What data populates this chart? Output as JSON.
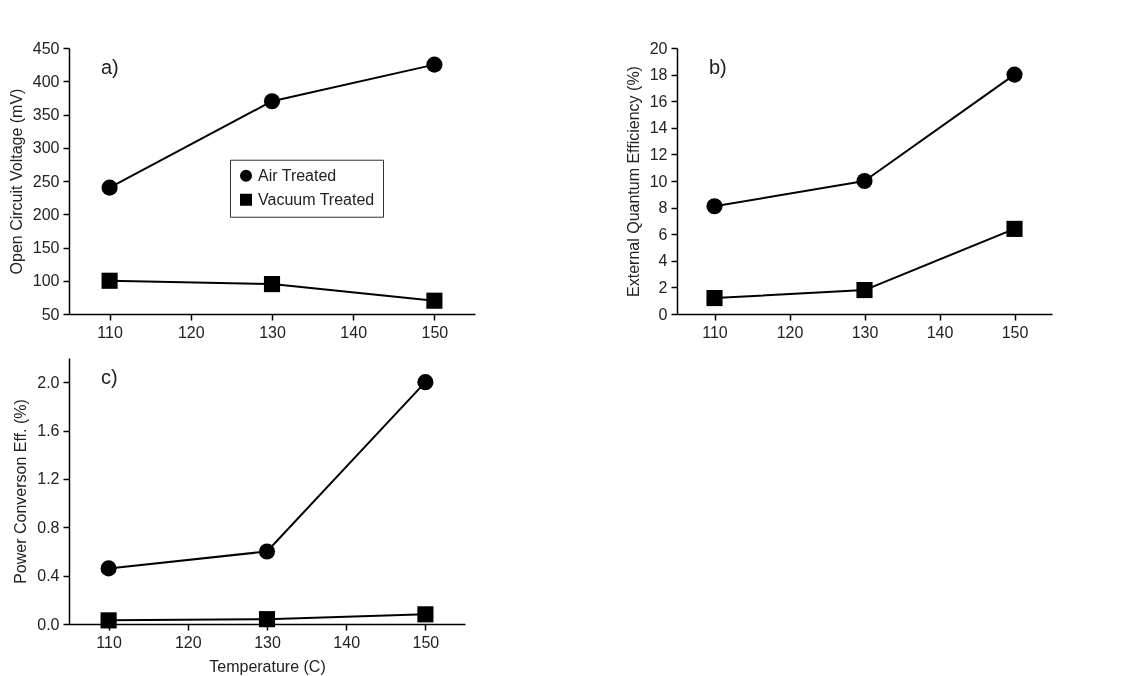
{
  "chart_data": [
    {
      "type": "line",
      "ylabel": "Open Circuit Voltage (mV)",
      "annotations": [
        "a)"
      ],
      "x": [
        110,
        130,
        150
      ],
      "xlim": [
        105,
        155
      ],
      "xticks": [
        110,
        120,
        130,
        140,
        150
      ],
      "ylim": [
        50,
        450
      ],
      "yticks": [
        50,
        100,
        150,
        200,
        250,
        300,
        350,
        400,
        450
      ],
      "legend": "right",
      "series": [
        {
          "name": "Air Treated",
          "color": "#000000",
          "marker": "circle",
          "values": [
            240,
            370,
            425
          ]
        },
        {
          "name": "Vacuum Treated",
          "color": "#000000",
          "marker": "square",
          "values": [
            100,
            95,
            70
          ]
        }
      ]
    },
    {
      "type": "line",
      "ylabel": "External Quantum Efficiency (%)",
      "annotations": [
        "b)"
      ],
      "x": [
        110,
        130,
        150
      ],
      "xlim": [
        105,
        155
      ],
      "xticks": [
        110,
        120,
        130,
        140,
        150
      ],
      "ylim": [
        0,
        20
      ],
      "yticks": [
        0,
        2,
        4,
        6,
        8,
        10,
        12,
        14,
        16,
        18,
        20
      ],
      "series": [
        {
          "color": "#000000",
          "marker": "circle",
          "values": [
            8.1,
            10,
            18
          ]
        },
        {
          "color": "#000000",
          "marker": "square",
          "values": [
            1.2,
            1.8,
            6.4
          ]
        }
      ]
    },
    {
      "type": "line",
      "xlabel": "Temperature (C)",
      "ylabel": "Power Converson Eff. (%)",
      "annotations": [
        "c)"
      ],
      "x": [
        110,
        130,
        150
      ],
      "xlim": [
        105,
        155
      ],
      "xticks": [
        110,
        120,
        130,
        140,
        150
      ],
      "ylim": [
        0,
        2.2
      ],
      "yticks": [
        {
          "value": 0,
          "label": "0.0"
        },
        {
          "value": 0.4,
          "label": "0.4"
        },
        {
          "value": 0.8,
          "label": "0.8"
        },
        {
          "value": 1.2,
          "label": "1.2"
        },
        {
          "value": 1.6,
          "label": "1.6"
        },
        {
          "value": 2,
          "label": "2.0"
        }
      ],
      "series": [
        {
          "color": "#000000",
          "marker": "circle",
          "values": [
            0.46,
            0.6,
            2.0
          ]
        },
        {
          "color": "#000000",
          "marker": "square",
          "values": [
            0.03,
            0.04,
            0.08
          ]
        }
      ]
    }
  ]
}
